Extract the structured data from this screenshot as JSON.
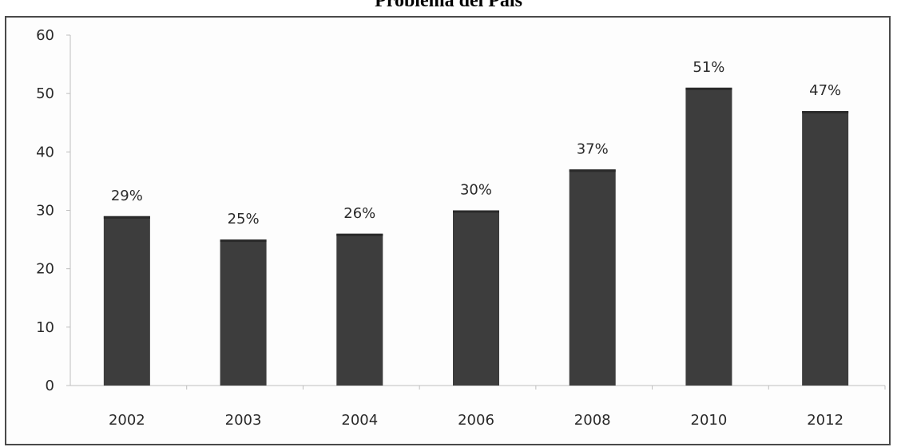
{
  "chart_data": {
    "type": "bar",
    "title": "Problema del País",
    "categories": [
      "2002",
      "2003",
      "2004",
      "2006",
      "2008",
      "2010",
      "2012"
    ],
    "values": [
      29,
      25,
      26,
      30,
      37,
      51,
      47
    ],
    "data_labels": [
      "29%",
      "25%",
      "26%",
      "30%",
      "37%",
      "51%",
      "47%"
    ],
    "y_ticks": [
      "0",
      "10",
      "20",
      "30",
      "40",
      "50",
      "60"
    ],
    "ylim": [
      0,
      60
    ],
    "xlabel": "",
    "ylabel": "",
    "grid": false,
    "legend": false,
    "bar_color": "#3d3d3d"
  }
}
